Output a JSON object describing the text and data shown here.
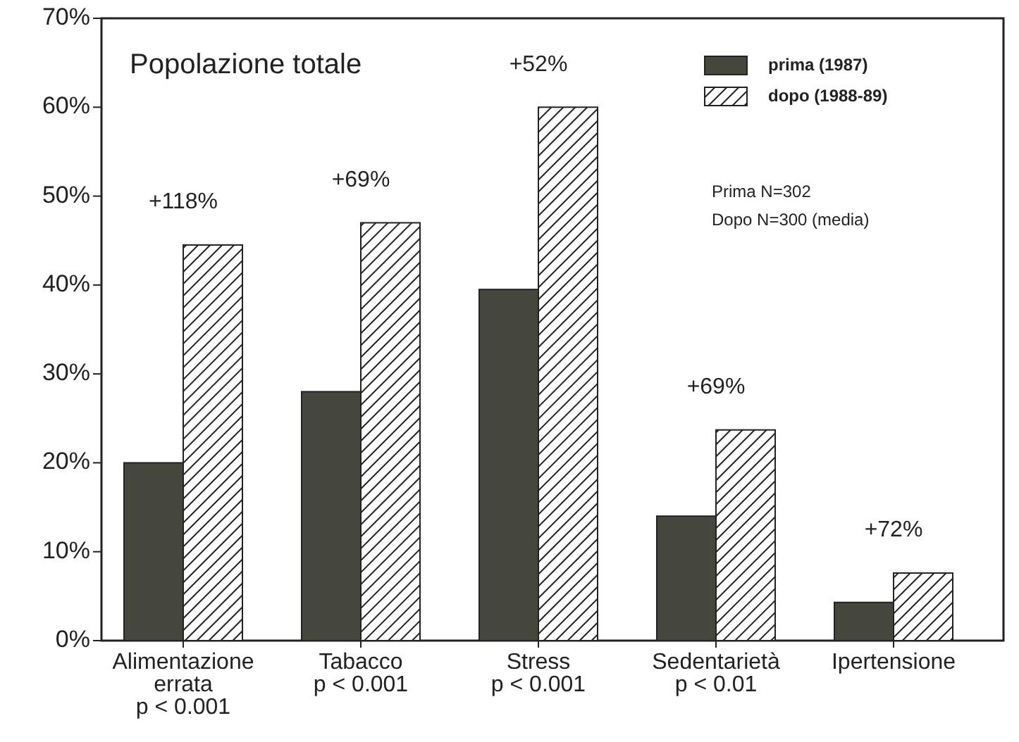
{
  "chart_data": {
    "type": "bar",
    "title": "Popolazione totale",
    "categories": [
      "Alimentazione\nerrata\np < 0.001",
      "Tabacco\np < 0.001",
      "Stress\np < 0.001",
      "Sedentarietà\np < 0.01",
      "Ipertensione"
    ],
    "series": [
      {
        "name": "prima (1987)",
        "color": "#45463c",
        "values": [
          20,
          28,
          39.5,
          14,
          4.3
        ]
      },
      {
        "name": "dopo (1988-89)",
        "color": "#222222",
        "values": [
          44.5,
          47,
          60,
          23.7,
          7.6
        ]
      }
    ],
    "ylim": [
      0,
      70
    ],
    "yticks": [
      {
        "value": 0,
        "label": "0%"
      },
      {
        "value": 10,
        "label": "10%"
      },
      {
        "value": 20,
        "label": "20%"
      },
      {
        "value": 30,
        "label": "30%"
      },
      {
        "value": 40,
        "label": "40%"
      },
      {
        "value": 50,
        "label": "50%"
      },
      {
        "value": 60,
        "label": "60%"
      },
      {
        "value": 70,
        "label": "70%"
      }
    ],
    "legend": "top right",
    "annotations": [
      {
        "text": "+118%",
        "x": "Alimentazione\nerrata\np < 0.001",
        "y": 44.5
      },
      {
        "text": "+69%",
        "x": "Tabacco\np < 0.001",
        "y": 47
      },
      {
        "text": "+52%",
        "x": "Stress\np < 0.001",
        "y": 60
      },
      {
        "text": "+69%",
        "x": "Sedentarietà\np < 0.01",
        "y": 23.7
      },
      {
        "text": "+72%",
        "x": "Ipertensione",
        "y": 7.6
      },
      "Prima N=302",
      "Dopo N=300 (media)"
    ]
  }
}
